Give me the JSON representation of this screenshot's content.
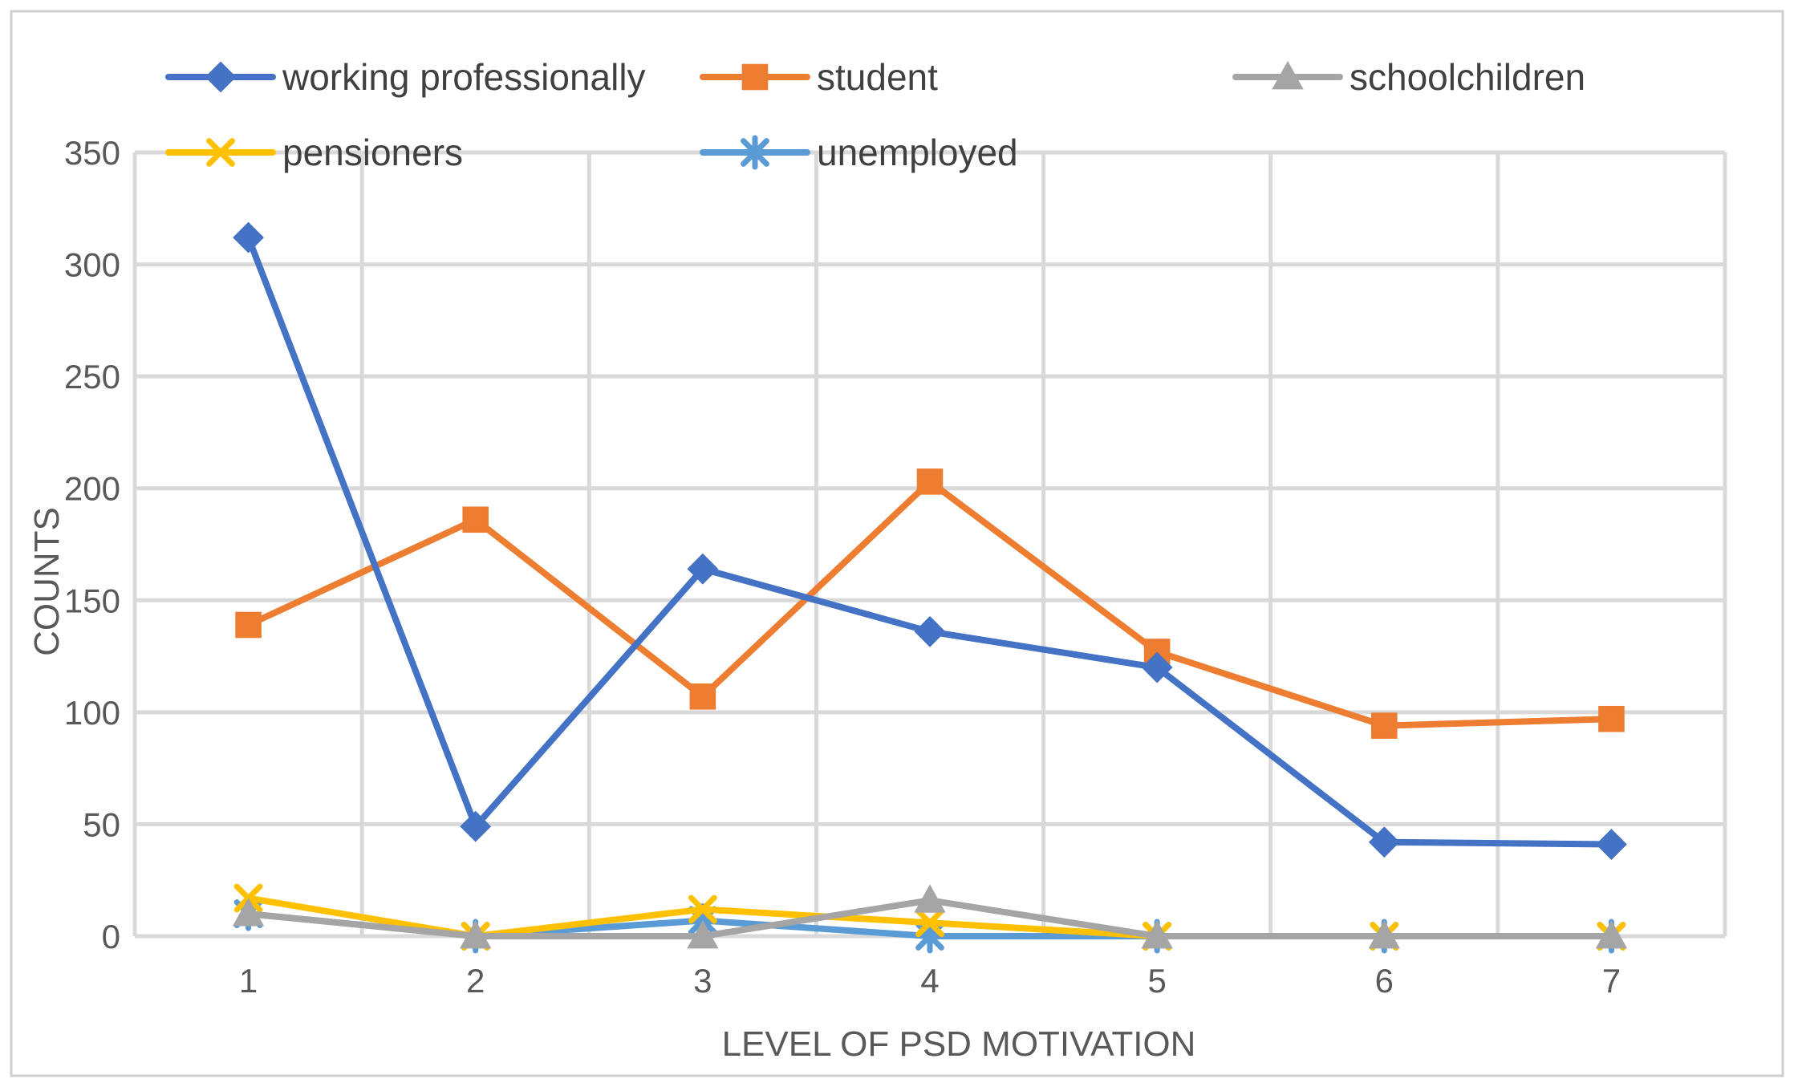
{
  "chart_data": {
    "type": "line",
    "title": "",
    "xlabel": "LEVEL OF PSD MOTIVATION",
    "ylabel": "COUNTS",
    "categories": [
      "1",
      "2",
      "3",
      "4",
      "5",
      "6",
      "7"
    ],
    "ylim": [
      0,
      350
    ],
    "yticks": [
      "0",
      "50",
      "100",
      "150",
      "200",
      "250",
      "300",
      "350"
    ],
    "grid": true,
    "legend_position": "top",
    "series": [
      {
        "name": "working professionally",
        "color": "#4472C4",
        "marker": "diamond",
        "values": [
          312,
          49,
          164,
          136,
          120,
          42,
          41
        ]
      },
      {
        "name": "student",
        "color": "#ED7D31",
        "marker": "square",
        "values": [
          139,
          186,
          107,
          203,
          127,
          94,
          97
        ]
      },
      {
        "name": "schoolchildren",
        "color": "#A5A5A5",
        "marker": "triangle",
        "values": [
          10,
          0,
          0,
          16,
          0,
          0,
          0
        ]
      },
      {
        "name": "pensioners",
        "color": "#FFC000",
        "marker": "x",
        "values": [
          17,
          0,
          12,
          6,
          0,
          0,
          0
        ]
      },
      {
        "name": "unemployed",
        "color": "#5B9BD5",
        "marker": "star",
        "values": [
          10,
          0,
          7,
          0,
          0,
          0,
          0
        ]
      }
    ]
  }
}
